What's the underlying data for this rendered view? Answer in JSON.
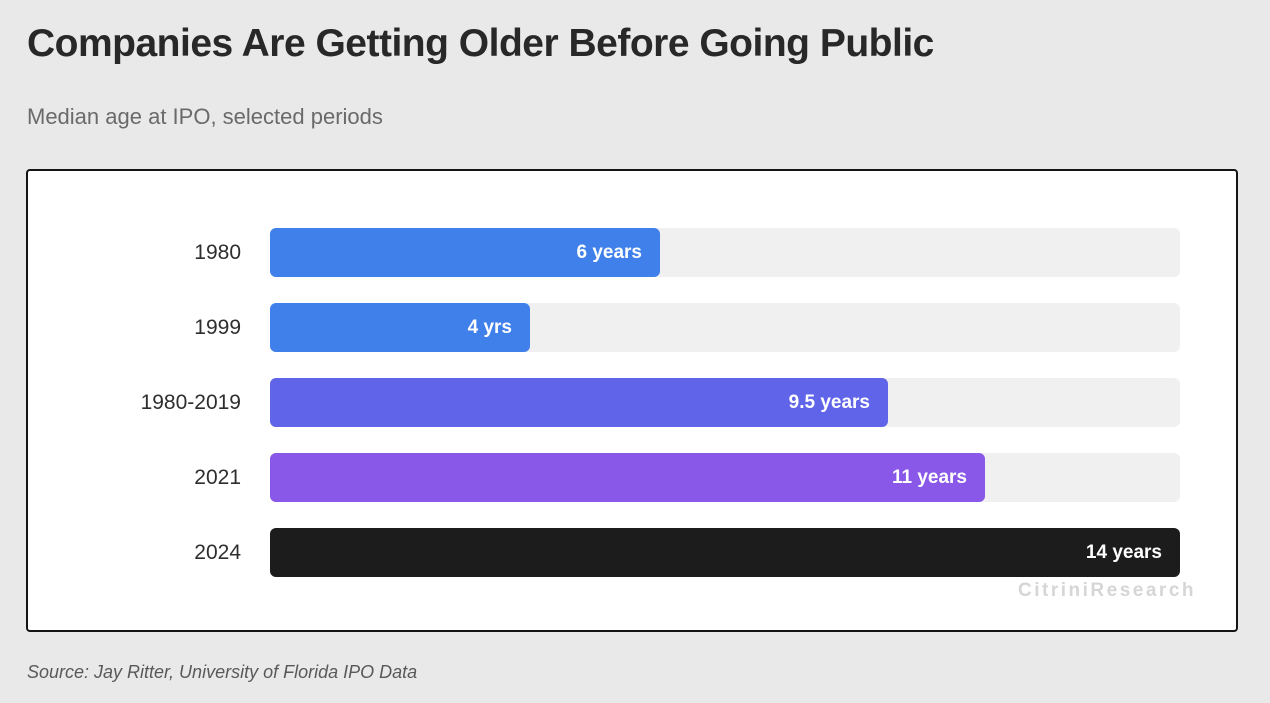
{
  "header": {
    "title": "Companies Are Getting Older Before Going Public",
    "subtitle": "Median age at IPO, selected periods"
  },
  "chart_data": {
    "type": "bar",
    "orientation": "horizontal",
    "title": "Companies Are Getting Older Before Going Public",
    "subtitle": "Median age at IPO, selected periods",
    "categories": [
      "1980",
      "1999",
      "1980-2019",
      "2021",
      "2024"
    ],
    "values": [
      6,
      4,
      9.5,
      11,
      14
    ],
    "value_labels": [
      "6 years",
      "4 yrs",
      "9.5 years",
      "11 years",
      "14 years"
    ],
    "bar_colors": [
      "#3f80ea",
      "#3f80ea",
      "#5f64e8",
      "#8a58e8",
      "#1c1c1c"
    ],
    "xlim": [
      0,
      14
    ],
    "track_color": "#f0f0f0",
    "grid": false,
    "legend": false
  },
  "watermark": "CitriniResearch",
  "footer": {
    "source": "Source: Jay Ritter, University of Florida IPO Data"
  },
  "colors": {
    "page_background": "#e9e9e9",
    "panel_background": "#ffffff",
    "panel_border": "#141414",
    "title_text": "#282828",
    "subtitle_text": "#6a6a6a",
    "watermark_text": "#d6d6d6"
  }
}
